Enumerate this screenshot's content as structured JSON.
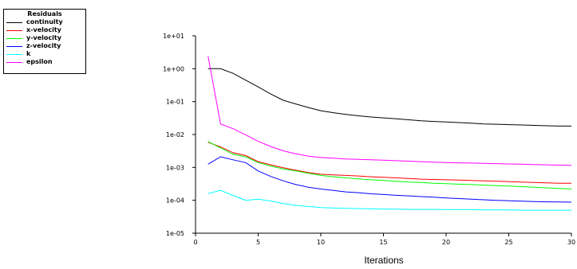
{
  "chart_data": {
    "type": "line",
    "title": "",
    "xlabel": "Iterations",
    "ylabel": "",
    "yscale": "log",
    "xlim": [
      0,
      30
    ],
    "ylim": [
      1e-05,
      10
    ],
    "xticks": [
      0,
      5,
      10,
      15,
      20,
      25,
      30
    ],
    "xtick_labels": [
      "0",
      "5",
      "10",
      "15",
      "20",
      "25",
      "30"
    ],
    "yticks": [
      1e-05,
      0.0001,
      0.001,
      0.01,
      0.1,
      1,
      10
    ],
    "ytick_labels": [
      "1e-05",
      "1e-04",
      "1e-03",
      "1e-02",
      "1e-01",
      "1e+00",
      "1e+01"
    ],
    "grid": false,
    "legend": {
      "title": "Residuals",
      "placement": "outside-left-top"
    },
    "x": [
      1,
      2,
      3,
      4,
      5,
      6,
      7,
      8,
      9,
      10,
      11,
      12,
      13,
      14,
      15,
      16,
      17,
      18,
      19,
      20,
      21,
      22,
      23,
      24,
      25,
      26,
      27,
      28,
      29,
      30
    ],
    "series": [
      {
        "name": "continuity",
        "color": "#000000",
        "values": [
          1.0,
          1.0,
          0.72,
          0.45,
          0.28,
          0.17,
          0.11,
          0.085,
          0.066,
          0.053,
          0.046,
          0.041,
          0.037,
          0.034,
          0.032,
          0.03,
          0.028,
          0.026,
          0.025,
          0.024,
          0.023,
          0.022,
          0.021,
          0.0205,
          0.02,
          0.0195,
          0.019,
          0.0185,
          0.018,
          0.018
        ]
      },
      {
        "name": "x-velocity",
        "color": "#ff0000",
        "values": [
          0.0058,
          0.0042,
          0.0028,
          0.0023,
          0.0015,
          0.0012,
          0.00098,
          0.00082,
          0.0007,
          0.00062,
          0.00059,
          0.00057,
          0.00055,
          0.00052,
          0.0005,
          0.00048,
          0.00046,
          0.00044,
          0.00043,
          0.00042,
          0.00041,
          0.0004,
          0.00039,
          0.00038,
          0.00037,
          0.00036,
          0.00035,
          0.00034,
          0.00033,
          0.00033
        ]
      },
      {
        "name": "y-velocity",
        "color": "#00ff00",
        "values": [
          0.0061,
          0.0039,
          0.0025,
          0.0021,
          0.0014,
          0.0011,
          0.0009,
          0.00078,
          0.00066,
          0.00057,
          0.00052,
          0.00048,
          0.00045,
          0.00042,
          0.0004,
          0.00038,
          0.00036,
          0.00035,
          0.00033,
          0.00032,
          0.00031,
          0.0003,
          0.00029,
          0.00028,
          0.00027,
          0.00026,
          0.00025,
          0.00024,
          0.00023,
          0.00022
        ]
      },
      {
        "name": "z-velocity",
        "color": "#0000ff",
        "values": [
          0.00125,
          0.0021,
          0.0017,
          0.0014,
          0.00078,
          0.00053,
          0.00039,
          0.0003,
          0.00025,
          0.00022,
          0.0002,
          0.00018,
          0.00017,
          0.000158,
          0.00015,
          0.000142,
          0.000136,
          0.00013,
          0.000124,
          0.000118,
          0.000113,
          0.000108,
          0.000104,
          0.0001,
          9.7e-05,
          9.4e-05,
          9.2e-05,
          9e-05,
          8.9e-05,
          8.8e-05
        ]
      },
      {
        "name": "k",
        "color": "#00ffff",
        "values": [
          0.00016,
          0.0002,
          0.00014,
          0.0001,
          0.000108,
          9.5e-05,
          8e-05,
          7e-05,
          6.5e-05,
          6e-05,
          5.8e-05,
          5.7e-05,
          5.6e-05,
          5.5e-05,
          5.4e-05,
          5.4e-05,
          5.3e-05,
          5.3e-05,
          5.3e-05,
          5.2e-05,
          5.2e-05,
          5.2e-05,
          5.1e-05,
          5.1e-05,
          5.1e-05,
          5e-05,
          5e-05,
          5e-05,
          5e-05,
          5e-05
        ]
      },
      {
        "name": "epsilon",
        "color": "#ff00ff",
        "values": [
          2.4,
          0.021,
          0.015,
          0.0098,
          0.0062,
          0.0043,
          0.0032,
          0.0026,
          0.0022,
          0.002,
          0.0019,
          0.0018,
          0.00175,
          0.0017,
          0.00165,
          0.0016,
          0.00155,
          0.0015,
          0.00145,
          0.0014,
          0.00138,
          0.00135,
          0.00132,
          0.0013,
          0.00127,
          0.00125,
          0.00122,
          0.0012,
          0.00117,
          0.00115
        ]
      }
    ]
  }
}
